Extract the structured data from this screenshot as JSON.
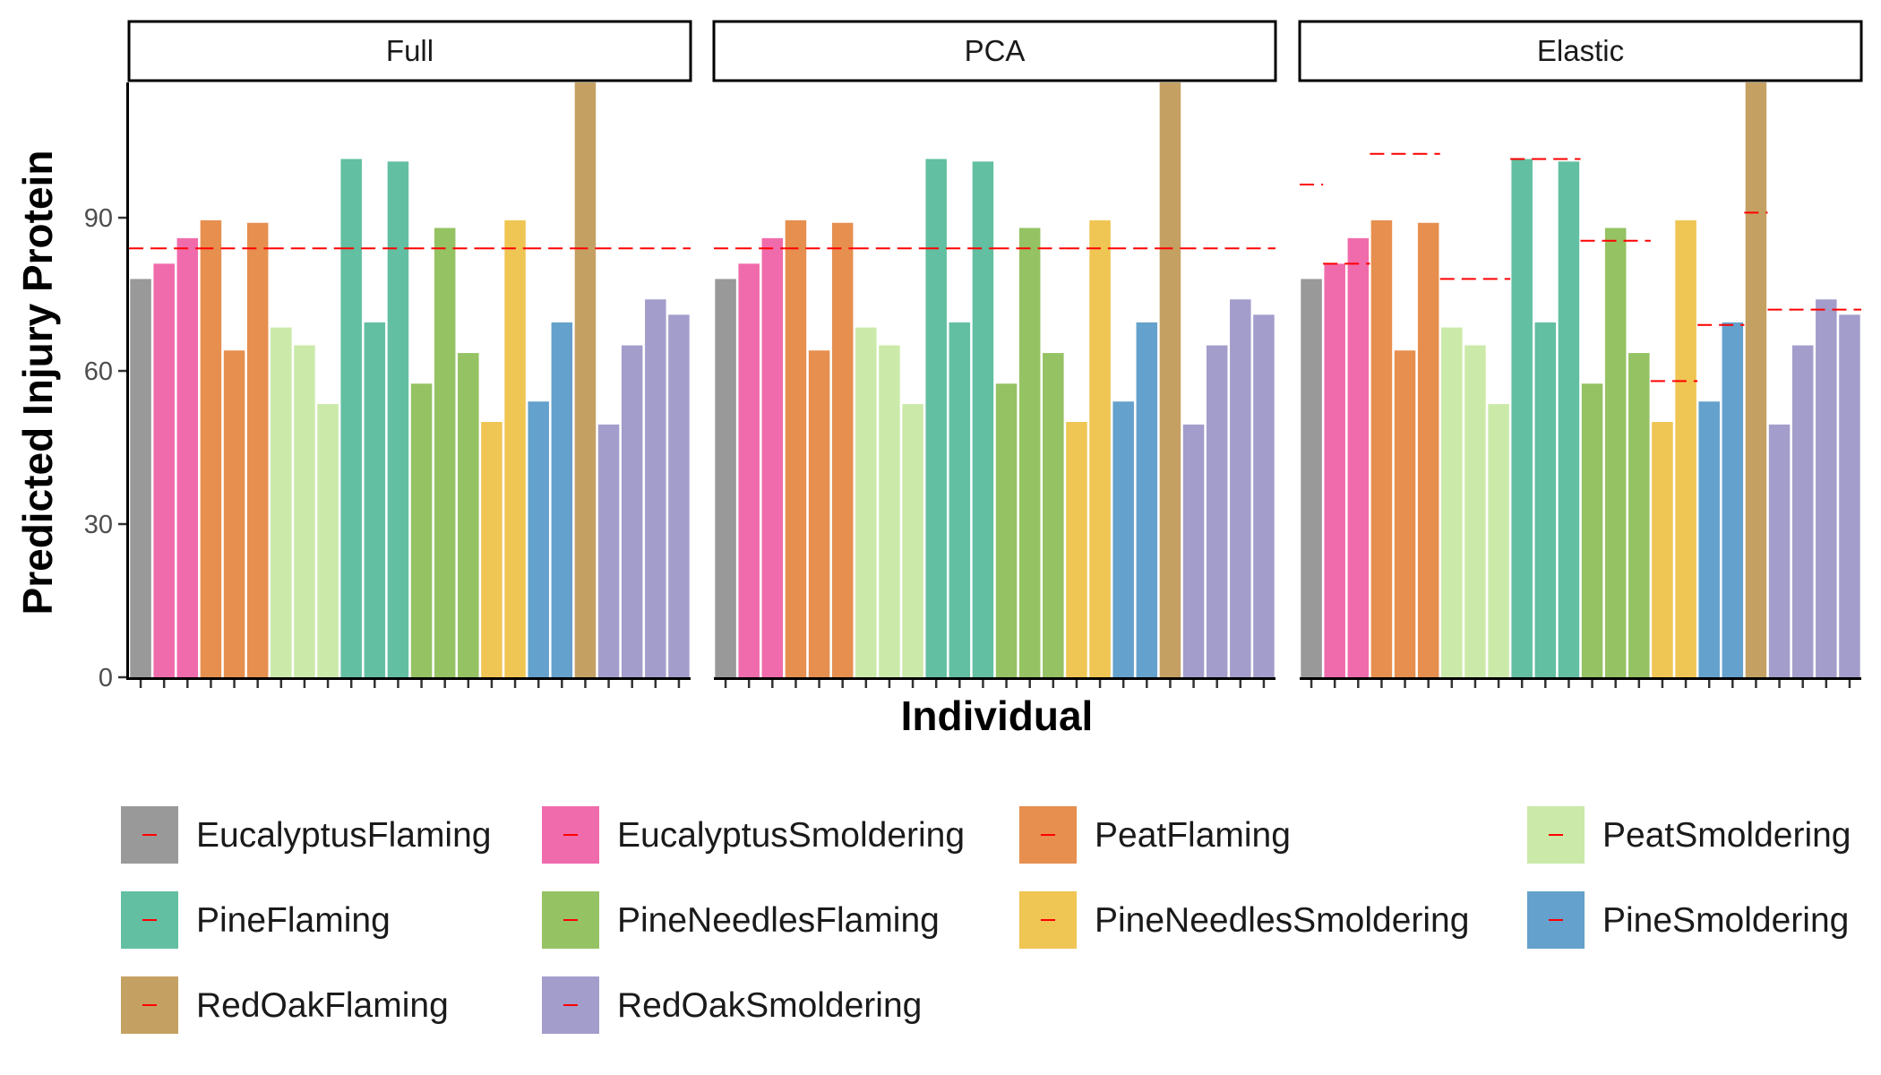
{
  "chart_data": {
    "type": "bar",
    "facets": [
      "Full",
      "PCA",
      "Elastic"
    ],
    "xlabel": "Individual",
    "ylabel": "Predicted Injury Protein",
    "ylim": [
      0,
      116.5
    ],
    "yticks": [
      0,
      30,
      60,
      90
    ],
    "grid": false,
    "legend_position": "bottom",
    "groups": [
      {
        "name": "EucalyptusFlaming",
        "color": "#999999",
        "count": 1
      },
      {
        "name": "EucalyptusSmoldering",
        "color": "#F06BAC",
        "count": 2
      },
      {
        "name": "PeatFlaming",
        "color": "#E68F4F",
        "count": 3
      },
      {
        "name": "PeatSmoldering",
        "color": "#CBEAA9",
        "count": 3
      },
      {
        "name": "PineFlaming",
        "color": "#62BFA2",
        "count": 3
      },
      {
        "name": "PineNeedlesFlaming",
        "color": "#95C263",
        "count": 3
      },
      {
        "name": "PineNeedlesSmoldering",
        "color": "#EFC553",
        "count": 2
      },
      {
        "name": "PineSmoldering",
        "color": "#64A1CC",
        "count": 2
      },
      {
        "name": "RedOakFlaming",
        "color": "#C4A163",
        "count": 1
      },
      {
        "name": "RedOakSmoldering",
        "color": "#A39DCB",
        "count": 4
      }
    ],
    "values": [
      78,
      81,
      86,
      89.5,
      64,
      89,
      68.5,
      65,
      53.5,
      101.5,
      69.5,
      101,
      57.5,
      88,
      63.5,
      50,
      89.5,
      54,
      69.5,
      116.5,
      49.5,
      65,
      74,
      71
    ],
    "reference_color": "#FF0000",
    "reference_lines": {
      "Full": [
        84,
        84,
        84,
        84,
        84,
        84,
        84,
        84,
        84,
        84
      ],
      "PCA": [
        84,
        84,
        84,
        84,
        84,
        84,
        84,
        84,
        84,
        84
      ],
      "Elastic": [
        96.5,
        81,
        102.5,
        78,
        101.5,
        85.5,
        58,
        69,
        91,
        72
      ]
    }
  }
}
